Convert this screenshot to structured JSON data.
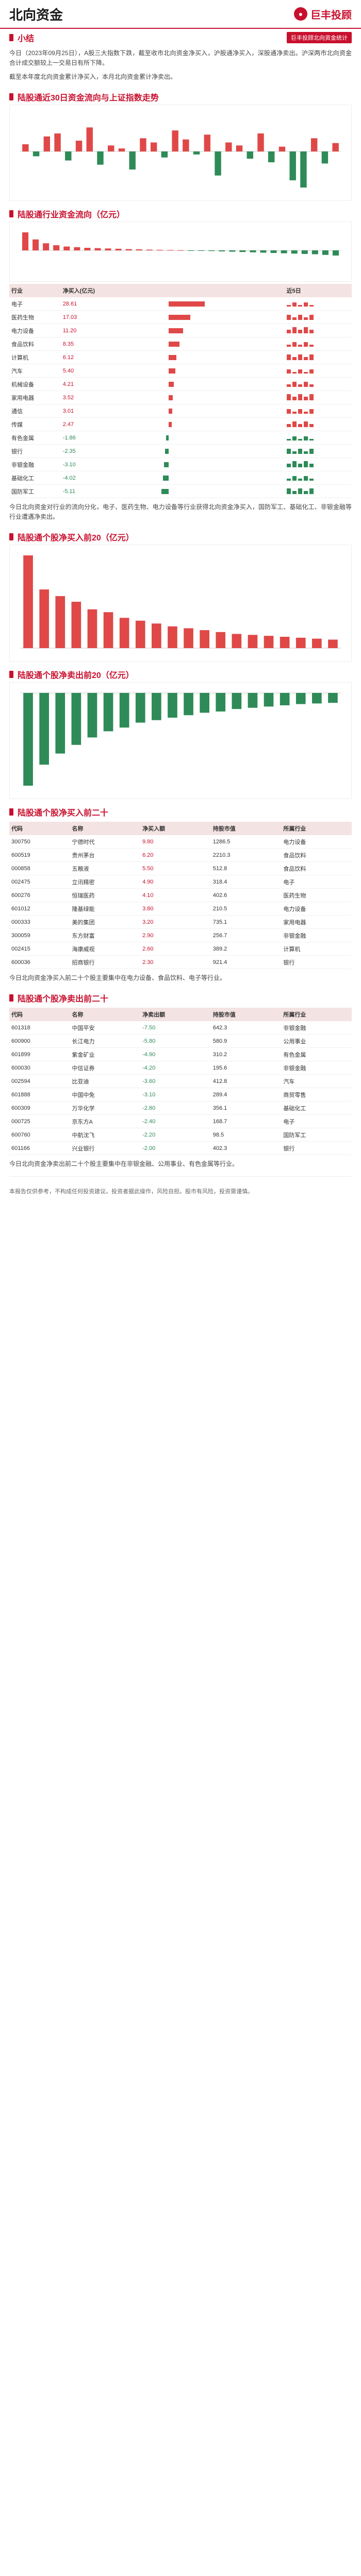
{
  "header": {
    "title": "北向资金",
    "logo_text": "巨丰投顾"
  },
  "summary": {
    "heading": "小结",
    "source_label": "巨丰投顾北向资金统计",
    "text": "今日（2023年09月25日），A股三大指数下跌，截至收市北向资金净买入，沪股通净买入，深股通净卖出。沪深两市北向资金合计成交额较上一交易日有所下降。",
    "text2": "截至本年度北向资金累计净买入，本月北向资金累计净卖出。"
  },
  "sections": {
    "s1": "陆股通近30日资金流向与上证指数走势",
    "s2": "陆股通行业资金流向（亿元）",
    "s3": "陆股通个股净买入前20（亿元）",
    "s4": "陆股通个股净卖出前20（亿元）",
    "s5": "陆股通个股净买入前二十",
    "s6": "陆股通个股净卖出前二十"
  },
  "chart_30d": {
    "type": "bar",
    "values": [
      12,
      -8,
      25,
      30,
      -15,
      18,
      40,
      -22,
      10,
      5,
      -30,
      22,
      15,
      -10,
      35,
      20,
      -5,
      28,
      -40,
      15,
      10,
      -12,
      30,
      -18,
      8,
      -48,
      -60,
      22,
      -20,
      14
    ]
  },
  "industry_chart": {
    "type": "bar",
    "values": [
      28,
      17,
      11,
      8,
      6,
      5,
      4,
      3.5,
      3,
      2.5,
      2,
      1.6,
      1.2,
      0.9,
      0.6,
      0.3,
      -0.3,
      -0.6,
      -1,
      -1.5,
      -2,
      -2.5,
      -3,
      -3.5,
      -4,
      -4.5,
      -5,
      -5.5,
      -6,
      -7,
      -8
    ]
  },
  "industry_table": {
    "headers": [
      "行业",
      "净买入(亿元)",
      "",
      "",
      "近5日"
    ],
    "rows": [
      {
        "name": "电子",
        "v": "28.61",
        "ratio": 1.0
      },
      {
        "name": "医药生物",
        "v": "17.03",
        "ratio": 0.6
      },
      {
        "name": "电力设备",
        "v": "11.20",
        "ratio": 0.4
      },
      {
        "name": "食品饮料",
        "v": "8.35",
        "ratio": 0.3
      },
      {
        "name": "计算机",
        "v": "6.12",
        "ratio": 0.22
      },
      {
        "name": "汽车",
        "v": "5.40",
        "ratio": 0.19
      },
      {
        "name": "机械设备",
        "v": "4.21",
        "ratio": 0.15
      },
      {
        "name": "家用电器",
        "v": "3.52",
        "ratio": 0.12
      },
      {
        "name": "通信",
        "v": "3.01",
        "ratio": 0.1
      },
      {
        "name": "传媒",
        "v": "2.47",
        "ratio": 0.09
      },
      {
        "name": "有色金属",
        "v": "-1.86",
        "ratio": -0.07
      },
      {
        "name": "银行",
        "v": "-2.35",
        "ratio": -0.09
      },
      {
        "name": "非银金融",
        "v": "-3.10",
        "ratio": -0.12
      },
      {
        "name": "基础化工",
        "v": "-4.02",
        "ratio": -0.15
      },
      {
        "name": "国防军工",
        "v": "-5.11",
        "ratio": -0.19
      }
    ]
  },
  "industry_text": "今日北向资金对行业的流向分化，电子、医药生物、电力设备等行业获得北向资金净买入，国防军工、基础化工、非银金融等行业遭遇净卖出。",
  "top_buy_chart": {
    "type": "bar",
    "values": [
      9.8,
      6.2,
      5.5,
      4.9,
      4.1,
      3.8,
      3.2,
      2.9,
      2.6,
      2.3,
      2.1,
      1.9,
      1.7,
      1.5,
      1.4,
      1.3,
      1.2,
      1.1,
      1.0,
      0.9
    ]
  },
  "top_sell_chart": {
    "type": "bar",
    "values": [
      -7.5,
      -5.8,
      -4.9,
      -4.2,
      -3.6,
      -3.1,
      -2.8,
      -2.4,
      -2.2,
      -2.0,
      -1.8,
      -1.6,
      -1.5,
      -1.3,
      -1.2,
      -1.1,
      -1.0,
      -0.9,
      -0.85,
      -0.8
    ]
  },
  "buy_table": {
    "headers": [
      "代码",
      "名称",
      "净买入额",
      "持股市值",
      "所属行业"
    ],
    "rows": [
      {
        "code": "300750",
        "name": "宁德时代",
        "v": "9.80",
        "mv": "1286.5",
        "ind": "电力设备"
      },
      {
        "code": "600519",
        "name": "贵州茅台",
        "v": "6.20",
        "mv": "2210.3",
        "ind": "食品饮料"
      },
      {
        "code": "000858",
        "name": "五粮液",
        "v": "5.50",
        "mv": "512.8",
        "ind": "食品饮料"
      },
      {
        "code": "002475",
        "name": "立讯精密",
        "v": "4.90",
        "mv": "318.4",
        "ind": "电子"
      },
      {
        "code": "600276",
        "name": "恒瑞医药",
        "v": "4.10",
        "mv": "402.6",
        "ind": "医药生物"
      },
      {
        "code": "601012",
        "name": "隆基绿能",
        "v": "3.80",
        "mv": "210.5",
        "ind": "电力设备"
      },
      {
        "code": "000333",
        "name": "美的集团",
        "v": "3.20",
        "mv": "735.1",
        "ind": "家用电器"
      },
      {
        "code": "300059",
        "name": "东方财富",
        "v": "2.90",
        "mv": "256.7",
        "ind": "非银金融"
      },
      {
        "code": "002415",
        "name": "海康威视",
        "v": "2.60",
        "mv": "389.2",
        "ind": "计算机"
      },
      {
        "code": "600036",
        "name": "招商银行",
        "v": "2.30",
        "mv": "921.4",
        "ind": "银行"
      }
    ]
  },
  "buy_text": "今日北向资金净买入前二十个股主要集中在电力设备、食品饮料、电子等行业。",
  "sell_table": {
    "headers": [
      "代码",
      "名称",
      "净卖出额",
      "持股市值",
      "所属行业"
    ],
    "rows": [
      {
        "code": "601318",
        "name": "中国平安",
        "v": "-7.50",
        "mv": "642.3",
        "ind": "非银金融"
      },
      {
        "code": "600900",
        "name": "长江电力",
        "v": "-5.80",
        "mv": "580.9",
        "ind": "公用事业"
      },
      {
        "code": "601899",
        "name": "紫金矿业",
        "v": "-4.90",
        "mv": "310.2",
        "ind": "有色金属"
      },
      {
        "code": "600030",
        "name": "中信证券",
        "v": "-4.20",
        "mv": "195.6",
        "ind": "非银金融"
      },
      {
        "code": "002594",
        "name": "比亚迪",
        "v": "-3.60",
        "mv": "412.8",
        "ind": "汽车"
      },
      {
        "code": "601888",
        "name": "中国中免",
        "v": "-3.10",
        "mv": "289.4",
        "ind": "商贸零售"
      },
      {
        "code": "600309",
        "name": "万华化学",
        "v": "-2.80",
        "mv": "356.1",
        "ind": "基础化工"
      },
      {
        "code": "000725",
        "name": "京东方A",
        "v": "-2.40",
        "mv": "168.7",
        "ind": "电子"
      },
      {
        "code": "600760",
        "name": "中航沈飞",
        "v": "-2.20",
        "mv": "98.5",
        "ind": "国防军工"
      },
      {
        "code": "601166",
        "name": "兴业银行",
        "v": "-2.00",
        "mv": "402.3",
        "ind": "银行"
      }
    ]
  },
  "sell_text": "今日北向资金净卖出前二十个股主要集中在非银金融、公用事业、有色金属等行业。",
  "disclaimer": "本报告仅供参考，不构成任何投资建议。投资者据此操作，风险自担。股市有风险，投资需谨慎。",
  "colors": {
    "accent": "#c8102e",
    "pos": "#e04848",
    "neg": "#2e8b57"
  }
}
